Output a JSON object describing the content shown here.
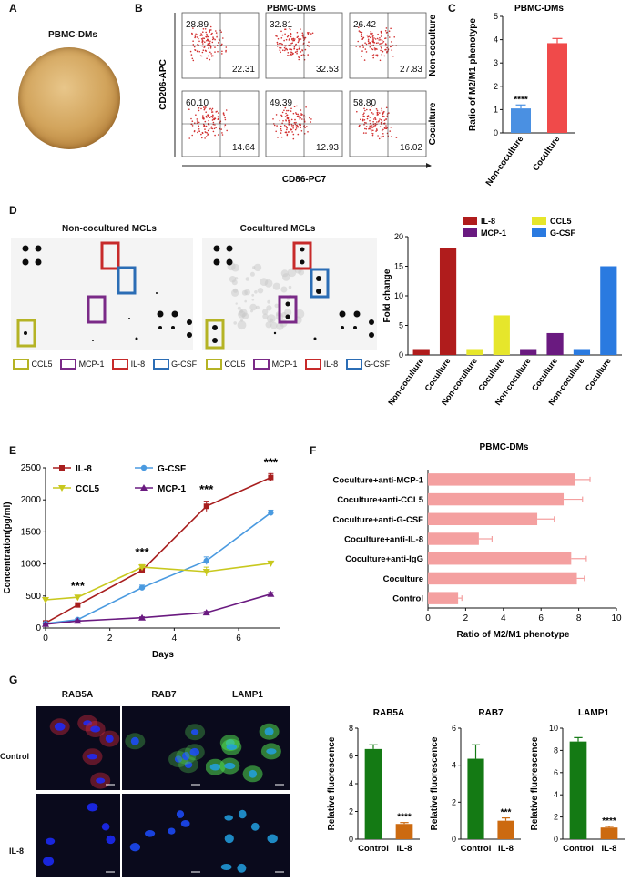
{
  "panels": {
    "A": "A",
    "B": "B",
    "C": "C",
    "D": "D",
    "E": "E",
    "F": "F",
    "G": "G"
  },
  "panelA": {
    "title": "PBMC-DMs"
  },
  "panelB": {
    "title": "PBMC-DMs",
    "ylabel": "CD206-APC",
    "xlabel": "CD86-PC7",
    "row_labels": [
      "Non-coculture",
      "Coculture"
    ],
    "quads": [
      {
        "ul": "28.89",
        "lr": "22.31"
      },
      {
        "ul": "32.81",
        "lr": "32.53"
      },
      {
        "ul": "26.42",
        "lr": "27.83"
      },
      {
        "ul": "60.10",
        "lr": "14.64"
      },
      {
        "ul": "49.39",
        "lr": "12.93"
      },
      {
        "ul": "58.80",
        "lr": "16.02"
      }
    ]
  },
  "panelD": {
    "left_title": "Non-cocultured MCLs",
    "right_title": "Cocultured MCLs",
    "legend": [
      {
        "label": "CCL5",
        "color": "#b5b325"
      },
      {
        "label": "MCP-1",
        "color": "#7a2a87"
      },
      {
        "label": "IL-8",
        "color": "#c72a2a"
      },
      {
        "label": "G-CSF",
        "color": "#2b6db5"
      }
    ]
  },
  "panelG": {
    "col_titles": [
      "RAB5A",
      "RAB7",
      "LAMP1"
    ],
    "row_labels": [
      "Control",
      "IL-8"
    ]
  },
  "chart_data": [
    {
      "id": "C",
      "type": "bar",
      "title": "PBMC-DMs",
      "ylabel": "Ratio of M2/M1 phenotype",
      "categories": [
        "Non-coculture",
        "Coculture"
      ],
      "values": [
        1.05,
        3.85
      ],
      "errors": [
        0.15,
        0.2
      ],
      "colors": [
        "#4a90e2",
        "#f04a4a"
      ],
      "ylim": [
        0,
        5
      ],
      "yticks": [
        0,
        1,
        2,
        3,
        4,
        5
      ],
      "annotations": [
        {
          "text": "****",
          "category": "Non-coculture"
        }
      ]
    },
    {
      "id": "D",
      "type": "bar",
      "ylabel": "Fold change",
      "categories": [
        "Non-coculture",
        "Coculture",
        "Non-coculture",
        "Coculture",
        "Non-coculture",
        "Coculture",
        "Non-coculture",
        "Coculture"
      ],
      "values": [
        1,
        18,
        1,
        6.7,
        1,
        3.7,
        1,
        15
      ],
      "colors": [
        "#b01c1c",
        "#b01c1c",
        "#e6e62b",
        "#e6e62b",
        "#6a1a80",
        "#6a1a80",
        "#2a7ae0",
        "#2a7ae0"
      ],
      "legend": [
        {
          "label": "IL-8",
          "color": "#b01c1c"
        },
        {
          "label": "CCL5",
          "color": "#e6e62b"
        },
        {
          "label": "MCP-1",
          "color": "#6a1a80"
        },
        {
          "label": "G-CSF",
          "color": "#2a7ae0"
        }
      ],
      "ylim": [
        0,
        20
      ],
      "yticks": [
        0,
        5,
        10,
        15,
        20
      ]
    },
    {
      "id": "E",
      "type": "line",
      "xlabel": "Days",
      "ylabel": "Concentration(pg/ml)",
      "xlim": [
        0,
        7.3
      ],
      "ylim": [
        0,
        2500
      ],
      "xticks": [
        0,
        2,
        4,
        6
      ],
      "yticks": [
        0,
        500,
        1000,
        1500,
        2000,
        2500
      ],
      "series": [
        {
          "name": "IL-8",
          "color": "#a81e1e",
          "marker": "square",
          "x": [
            0,
            1,
            3,
            5,
            7
          ],
          "y": [
            80,
            360,
            900,
            1900,
            2350
          ],
          "err": [
            20,
            30,
            40,
            80,
            60
          ]
        },
        {
          "name": "G-CSF",
          "color": "#4a9ae0",
          "marker": "circle",
          "x": [
            0,
            1,
            3,
            5,
            7
          ],
          "y": [
            70,
            130,
            630,
            1050,
            1800
          ],
          "err": [
            15,
            20,
            40,
            60,
            40
          ]
        },
        {
          "name": "CCL5",
          "color": "#c8c81e",
          "marker": "triangle-down",
          "x": [
            0,
            1,
            3,
            5,
            7
          ],
          "y": [
            440,
            480,
            950,
            880,
            1010
          ],
          "err": [
            20,
            25,
            40,
            70,
            30
          ]
        },
        {
          "name": "MCP-1",
          "color": "#6a1a80",
          "marker": "triangle",
          "x": [
            0,
            1,
            3,
            5,
            7
          ],
          "y": [
            60,
            110,
            160,
            240,
            530
          ],
          "err": [
            10,
            10,
            15,
            20,
            25
          ]
        }
      ],
      "annotations": [
        {
          "text": "***",
          "x": 1,
          "y": 600
        },
        {
          "text": "***",
          "x": 3,
          "y": 1120
        },
        {
          "text": "***",
          "x": 5,
          "y": 2100
        },
        {
          "text": "***",
          "x": 7,
          "y": 2520
        }
      ]
    },
    {
      "id": "F",
      "type": "bar",
      "orientation": "horizontal",
      "title": "PBMC-DMs",
      "xlabel": "Ratio of M2/M1 phenotype",
      "categories": [
        "Coculture+anti-MCP-1",
        "Coculture+anti-CCL5",
        "Coculture+anti-G-CSF",
        "Coculture+anti-IL-8",
        "Coculture+anti-IgG",
        "Coculture",
        "Control"
      ],
      "values": [
        7.8,
        7.2,
        5.8,
        2.7,
        7.6,
        7.9,
        1.6
      ],
      "errors": [
        0.8,
        1.0,
        0.9,
        0.7,
        0.8,
        0.4,
        0.2
      ],
      "color": "#f4a0a0",
      "xlim": [
        0,
        10
      ],
      "xticks": [
        0,
        2,
        4,
        6,
        8,
        10
      ]
    },
    {
      "id": "G-RAB5A",
      "type": "bar",
      "title": "RAB5A",
      "ylabel": "Relative fluorescence",
      "categories": [
        "Control",
        "IL-8"
      ],
      "values": [
        6.5,
        1.1
      ],
      "errors": [
        0.3,
        0.1
      ],
      "colors": [
        "#147a14",
        "#cc6a10"
      ],
      "ylim": [
        0,
        8
      ],
      "yticks": [
        0,
        2,
        4,
        6,
        8
      ],
      "annotations": [
        {
          "text": "****",
          "category": "IL-8"
        }
      ]
    },
    {
      "id": "G-RAB7",
      "type": "bar",
      "title": "RAB7",
      "ylabel": "Relative fluorescence",
      "categories": [
        "Control",
        "IL-8"
      ],
      "values": [
        4.35,
        1.0
      ],
      "errors": [
        0.75,
        0.15
      ],
      "colors": [
        "#147a14",
        "#cc6a10"
      ],
      "ylim": [
        0,
        6
      ],
      "yticks": [
        0,
        2,
        4,
        6
      ],
      "annotations": [
        {
          "text": "***",
          "category": "IL-8"
        }
      ]
    },
    {
      "id": "G-LAMP1",
      "type": "bar",
      "title": "LAMP1",
      "ylabel": "Relative fluorescence",
      "categories": [
        "Control",
        "IL-8"
      ],
      "values": [
        8.8,
        1.05
      ],
      "errors": [
        0.35,
        0.1
      ],
      "colors": [
        "#147a14",
        "#cc6a10"
      ],
      "ylim": [
        0,
        10
      ],
      "yticks": [
        0,
        2,
        4,
        6,
        8,
        10
      ],
      "annotations": [
        {
          "text": "****",
          "category": "IL-8"
        }
      ]
    }
  ]
}
